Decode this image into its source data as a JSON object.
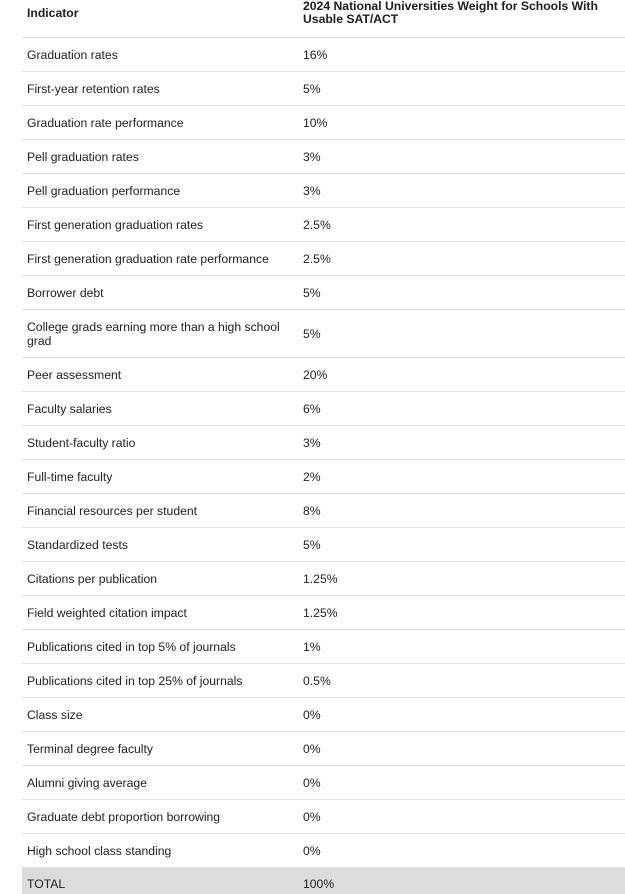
{
  "table": {
    "headers": {
      "indicator": "Indicator",
      "weight": "2024 National Universities Weight for Schools With Usable SAT/ACT"
    },
    "rows": [
      {
        "indicator": "Graduation rates",
        "weight": "16%"
      },
      {
        "indicator": "First-year retention rates",
        "weight": "5%"
      },
      {
        "indicator": "Graduation rate performance",
        "weight": "10%"
      },
      {
        "indicator": "Pell graduation rates",
        "weight": "3%"
      },
      {
        "indicator": "Pell graduation performance",
        "weight": "3%"
      },
      {
        "indicator": "First generation graduation rates",
        "weight": "2.5%"
      },
      {
        "indicator": "First generation graduation rate performance",
        "weight": "2.5%"
      },
      {
        "indicator": "Borrower debt",
        "weight": "5%"
      },
      {
        "indicator": "College grads earning more than a high school grad",
        "weight": "5%"
      },
      {
        "indicator": "Peer assessment",
        "weight": "20%"
      },
      {
        "indicator": "Faculty salaries",
        "weight": "6%"
      },
      {
        "indicator": "Student-faculty ratio",
        "weight": "3%"
      },
      {
        "indicator": "Full-time faculty",
        "weight": "2%"
      },
      {
        "indicator": "Financial resources per student",
        "weight": "8%"
      },
      {
        "indicator": "Standardized tests",
        "weight": "5%"
      },
      {
        "indicator": "Citations per publication",
        "weight": "1.25%"
      },
      {
        "indicator": "Field weighted citation impact",
        "weight": "1.25%"
      },
      {
        "indicator": "Publications cited in top 5% of journals",
        "weight": "1%"
      },
      {
        "indicator": "Publications cited in top 25% of journals",
        "weight": "0.5%"
      },
      {
        "indicator": "Class size",
        "weight": "0%"
      },
      {
        "indicator": "Terminal degree faculty",
        "weight": "0%"
      },
      {
        "indicator": "Alumni giving average",
        "weight": "0%"
      },
      {
        "indicator": "Graduate debt proportion borrowing",
        "weight": "0%"
      },
      {
        "indicator": "High school class standing",
        "weight": "0%"
      }
    ],
    "total": {
      "indicator": "TOTAL",
      "weight": "100%"
    }
  }
}
